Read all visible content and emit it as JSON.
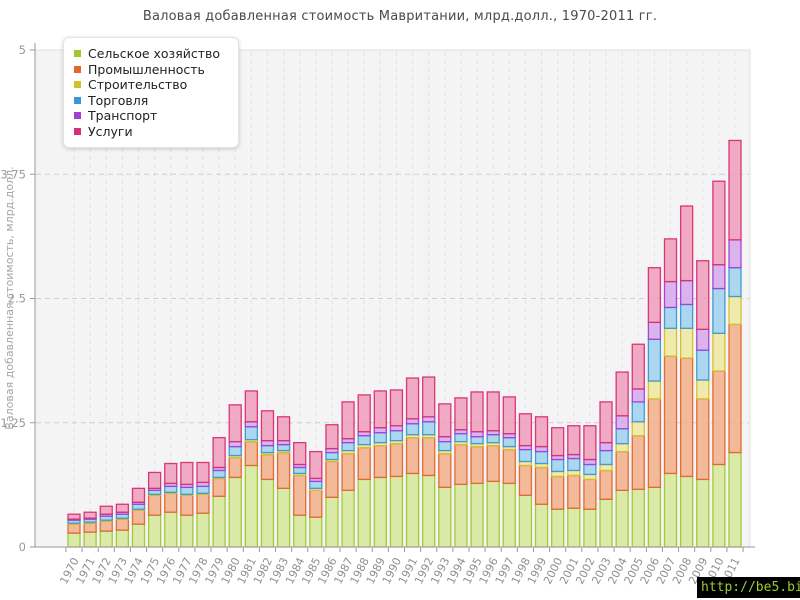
{
  "watermark": {
    "text": "http://be5.biz/",
    "bg": "#000000",
    "color": "#9ccd2a"
  },
  "chart_data": {
    "type": "bar",
    "stacked": true,
    "title": "Валовая добавленная стоимость Мавритании, млрд.долл., 1970-2011 гг.",
    "xlabel": "",
    "ylabel": "Валовая добавленная стоимость, млрд.долл.",
    "ylim": [
      0,
      5
    ],
    "yticks": [
      0,
      1.25,
      2.5,
      3.75,
      5
    ],
    "ytick_labels": [
      "0",
      "1.25",
      "2.5",
      "3.75",
      "5"
    ],
    "grid": true,
    "legend_position": "top-left",
    "categories": [
      "1970",
      "1971",
      "1972",
      "1973",
      "1974",
      "1975",
      "1976",
      "1977",
      "1978",
      "1979",
      "1980",
      "1981",
      "1982",
      "1983",
      "1984",
      "1985",
      "1986",
      "1987",
      "1988",
      "1989",
      "1990",
      "1991",
      "1992",
      "1993",
      "1994",
      "1995",
      "1996",
      "1997",
      "1998",
      "1999",
      "2000",
      "2001",
      "2002",
      "2003",
      "2004",
      "2005",
      "2006",
      "2007",
      "2008",
      "2009",
      "2010",
      "2011"
    ],
    "series": [
      {
        "name": "Сельское хозяйство",
        "color": "#9fc733",
        "fill": "#d6e79a",
        "values": [
          0.14,
          0.15,
          0.16,
          0.17,
          0.23,
          0.32,
          0.35,
          0.32,
          0.34,
          0.51,
          0.7,
          0.82,
          0.68,
          0.59,
          0.32,
          0.3,
          0.5,
          0.57,
          0.68,
          0.7,
          0.71,
          0.74,
          0.72,
          0.6,
          0.63,
          0.64,
          0.66,
          0.64,
          0.52,
          0.43,
          0.38,
          0.39,
          0.38,
          0.48,
          0.57,
          0.58,
          0.6,
          0.74,
          0.71,
          0.68,
          0.83,
          0.95
        ]
      },
      {
        "name": "Промышленность",
        "color": "#e0662e",
        "fill": "#f1af87",
        "values": [
          0.09,
          0.09,
          0.1,
          0.11,
          0.14,
          0.2,
          0.19,
          0.2,
          0.19,
          0.18,
          0.2,
          0.24,
          0.25,
          0.36,
          0.4,
          0.27,
          0.36,
          0.37,
          0.32,
          0.32,
          0.33,
          0.36,
          0.38,
          0.34,
          0.4,
          0.37,
          0.36,
          0.34,
          0.3,
          0.37,
          0.33,
          0.33,
          0.3,
          0.29,
          0.39,
          0.54,
          0.89,
          1.18,
          1.19,
          0.81,
          0.94,
          1.29
        ]
      },
      {
        "name": "Строительство",
        "color": "#d3c02b",
        "fill": "#eee8a0",
        "values": [
          0.01,
          0.01,
          0.01,
          0.01,
          0.01,
          0.01,
          0.01,
          0.01,
          0.01,
          0.01,
          0.02,
          0.02,
          0.02,
          0.02,
          0.02,
          0.02,
          0.02,
          0.03,
          0.03,
          0.03,
          0.03,
          0.03,
          0.03,
          0.03,
          0.03,
          0.03,
          0.03,
          0.03,
          0.04,
          0.04,
          0.05,
          0.05,
          0.05,
          0.06,
          0.08,
          0.14,
          0.18,
          0.28,
          0.3,
          0.19,
          0.38,
          0.28
        ]
      },
      {
        "name": "Торговля",
        "color": "#3b97d3",
        "fill": "#9ed1ef",
        "values": [
          0.03,
          0.03,
          0.04,
          0.04,
          0.05,
          0.04,
          0.06,
          0.07,
          0.07,
          0.07,
          0.09,
          0.13,
          0.07,
          0.06,
          0.06,
          0.07,
          0.07,
          0.08,
          0.09,
          0.1,
          0.1,
          0.11,
          0.13,
          0.09,
          0.08,
          0.07,
          0.08,
          0.09,
          0.12,
          0.12,
          0.12,
          0.12,
          0.1,
          0.14,
          0.15,
          0.2,
          0.42,
          0.21,
          0.24,
          0.3,
          0.45,
          0.29
        ]
      },
      {
        "name": "Транспорт",
        "color": "#a13fd1",
        "fill": "#d6a8ec",
        "values": [
          0.01,
          0.01,
          0.02,
          0.02,
          0.02,
          0.02,
          0.03,
          0.03,
          0.04,
          0.03,
          0.05,
          0.05,
          0.05,
          0.04,
          0.03,
          0.03,
          0.04,
          0.04,
          0.04,
          0.05,
          0.05,
          0.05,
          0.05,
          0.05,
          0.04,
          0.05,
          0.04,
          0.04,
          0.04,
          0.05,
          0.04,
          0.04,
          0.05,
          0.08,
          0.13,
          0.13,
          0.17,
          0.26,
          0.24,
          0.21,
          0.24,
          0.28
        ]
      },
      {
        "name": "Услуги",
        "color": "#d62e74",
        "fill": "#f09cba",
        "values": [
          0.05,
          0.06,
          0.08,
          0.08,
          0.14,
          0.16,
          0.2,
          0.22,
          0.2,
          0.3,
          0.37,
          0.31,
          0.3,
          0.24,
          0.22,
          0.27,
          0.24,
          0.37,
          0.37,
          0.37,
          0.36,
          0.41,
          0.4,
          0.33,
          0.32,
          0.4,
          0.39,
          0.37,
          0.32,
          0.3,
          0.28,
          0.29,
          0.34,
          0.41,
          0.44,
          0.45,
          0.55,
          0.43,
          0.75,
          0.69,
          0.84,
          1.0
        ]
      }
    ]
  }
}
